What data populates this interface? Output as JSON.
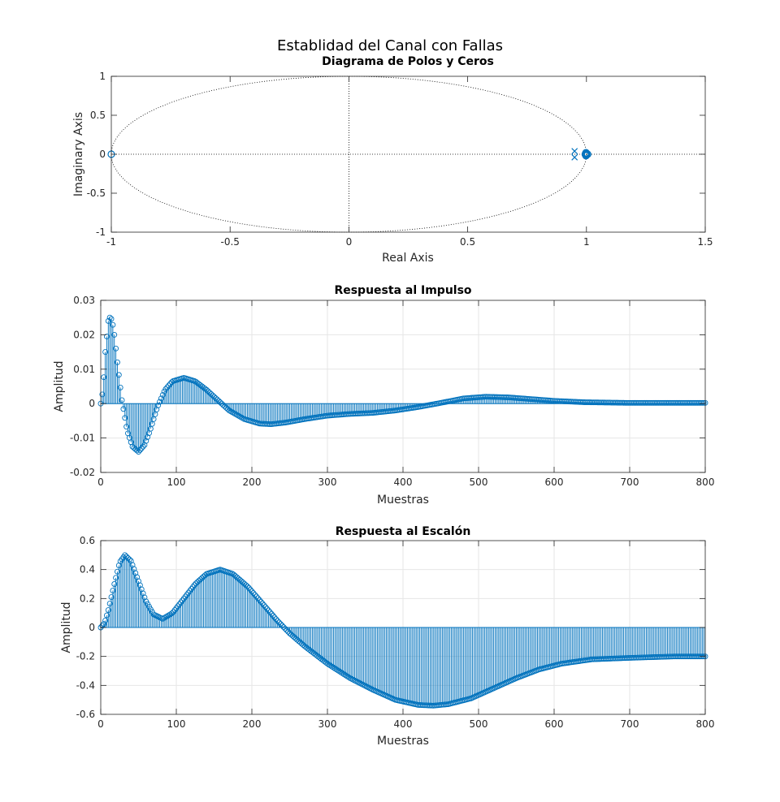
{
  "figure": {
    "suptitle": "Establidad del Canal con Fallas"
  },
  "colors": {
    "series": "#0072bd",
    "axes": "#262626",
    "grid": "#e6e6e6",
    "unit_circle": "#000000"
  },
  "chart_data": [
    {
      "type": "scatter",
      "title": "Diagrama de Polos y Ceros",
      "xlabel": "Real Axis",
      "ylabel": "Imaginary Axis",
      "xlim": [
        -1,
        1.5
      ],
      "ylim": [
        -1,
        1
      ],
      "xticks": [
        -1,
        -0.5,
        0,
        0.5,
        1,
        1.5
      ],
      "xtick_labels": [
        "-1",
        "-0.5",
        "0",
        "0.5",
        "1",
        "1.5"
      ],
      "yticks": [
        -1,
        -0.5,
        0,
        0.5,
        1
      ],
      "ytick_labels": [
        "-1",
        "-0.5",
        "0",
        "0.5",
        "1"
      ],
      "grid": false,
      "unit_circle": true,
      "zeros": [
        [
          -1,
          0
        ],
        [
          1.0,
          0.0
        ],
        [
          1.0,
          0.01
        ],
        [
          1.0,
          -0.01
        ],
        [
          0.998,
          0.02
        ],
        [
          0.998,
          -0.02
        ],
        [
          0.995,
          0.0
        ],
        [
          1.005,
          0.0
        ]
      ],
      "poles": [
        [
          0.95,
          0.04
        ],
        [
          0.95,
          -0.04
        ]
      ]
    },
    {
      "type": "stem",
      "title": "Respuesta al Impulso",
      "xlabel": "Muestras",
      "ylabel": "Amplitud",
      "xlim": [
        0,
        800
      ],
      "ylim": [
        -0.02,
        0.03
      ],
      "xticks": [
        0,
        100,
        200,
        300,
        400,
        500,
        600,
        700,
        800
      ],
      "xtick_labels": [
        "0",
        "100",
        "200",
        "300",
        "400",
        "500",
        "600",
        "700",
        "800"
      ],
      "yticks": [
        -0.02,
        -0.01,
        0,
        0.01,
        0.02,
        0.03
      ],
      "ytick_labels": [
        "-0.02",
        "-0.01",
        "0",
        "0.01",
        "0.02",
        "0.03"
      ],
      "grid": true,
      "x_step": 2,
      "curve_knots": [
        [
          0,
          0
        ],
        [
          3,
          0.004
        ],
        [
          6,
          0.015
        ],
        [
          10,
          0.024
        ],
        [
          13,
          0.0255
        ],
        [
          17,
          0.022
        ],
        [
          22,
          0.012
        ],
        [
          28,
          0.001
        ],
        [
          35,
          -0.008
        ],
        [
          42,
          -0.0125
        ],
        [
          50,
          -0.014
        ],
        [
          58,
          -0.012
        ],
        [
          65,
          -0.008
        ],
        [
          75,
          -0.001
        ],
        [
          85,
          0.004
        ],
        [
          95,
          0.0065
        ],
        [
          110,
          0.0075
        ],
        [
          125,
          0.0065
        ],
        [
          140,
          0.004
        ],
        [
          155,
          0.001
        ],
        [
          170,
          -0.002
        ],
        [
          190,
          -0.0045
        ],
        [
          210,
          -0.0058
        ],
        [
          225,
          -0.006
        ],
        [
          245,
          -0.0055
        ],
        [
          270,
          -0.0045
        ],
        [
          300,
          -0.0035
        ],
        [
          330,
          -0.003
        ],
        [
          360,
          -0.0027
        ],
        [
          390,
          -0.002
        ],
        [
          420,
          -0.001
        ],
        [
          450,
          0.0002
        ],
        [
          480,
          0.0015
        ],
        [
          510,
          0.002
        ],
        [
          540,
          0.0018
        ],
        [
          570,
          0.0013
        ],
        [
          600,
          0.0008
        ],
        [
          640,
          0.0004
        ],
        [
          700,
          0.0002
        ],
        [
          760,
          0.0002
        ],
        [
          800,
          0.0002
        ]
      ]
    },
    {
      "type": "stem",
      "title": "Respuesta al Escalón",
      "xlabel": "Muestras",
      "ylabel": "Amplitud",
      "xlim": [
        0,
        800
      ],
      "ylim": [
        -0.6,
        0.6
      ],
      "xticks": [
        0,
        100,
        200,
        300,
        400,
        500,
        600,
        700,
        800
      ],
      "xtick_labels": [
        "0",
        "100",
        "200",
        "300",
        "400",
        "500",
        "600",
        "700",
        "800"
      ],
      "yticks": [
        -0.6,
        -0.4,
        -0.2,
        0,
        0.2,
        0.4,
        0.6
      ],
      "ytick_labels": [
        "-0.6",
        "-0.4",
        "-0.2",
        "0",
        "0.2",
        "0.4",
        "0.6"
      ],
      "grid": true,
      "x_step": 2,
      "curve_knots": [
        [
          0,
          0
        ],
        [
          5,
          0.03
        ],
        [
          10,
          0.12
        ],
        [
          18,
          0.3
        ],
        [
          25,
          0.45
        ],
        [
          32,
          0.5
        ],
        [
          40,
          0.46
        ],
        [
          50,
          0.32
        ],
        [
          60,
          0.18
        ],
        [
          70,
          0.09
        ],
        [
          82,
          0.06
        ],
        [
          95,
          0.1
        ],
        [
          110,
          0.2
        ],
        [
          125,
          0.3
        ],
        [
          140,
          0.37
        ],
        [
          158,
          0.4
        ],
        [
          175,
          0.37
        ],
        [
          195,
          0.28
        ],
        [
          215,
          0.16
        ],
        [
          235,
          0.04
        ],
        [
          250,
          -0.04
        ],
        [
          270,
          -0.13
        ],
        [
          300,
          -0.25
        ],
        [
          330,
          -0.35
        ],
        [
          360,
          -0.43
        ],
        [
          390,
          -0.5
        ],
        [
          420,
          -0.535
        ],
        [
          440,
          -0.54
        ],
        [
          460,
          -0.53
        ],
        [
          490,
          -0.49
        ],
        [
          520,
          -0.42
        ],
        [
          550,
          -0.35
        ],
        [
          580,
          -0.29
        ],
        [
          610,
          -0.25
        ],
        [
          650,
          -0.22
        ],
        [
          700,
          -0.21
        ],
        [
          760,
          -0.2
        ],
        [
          800,
          -0.2
        ]
      ]
    }
  ]
}
